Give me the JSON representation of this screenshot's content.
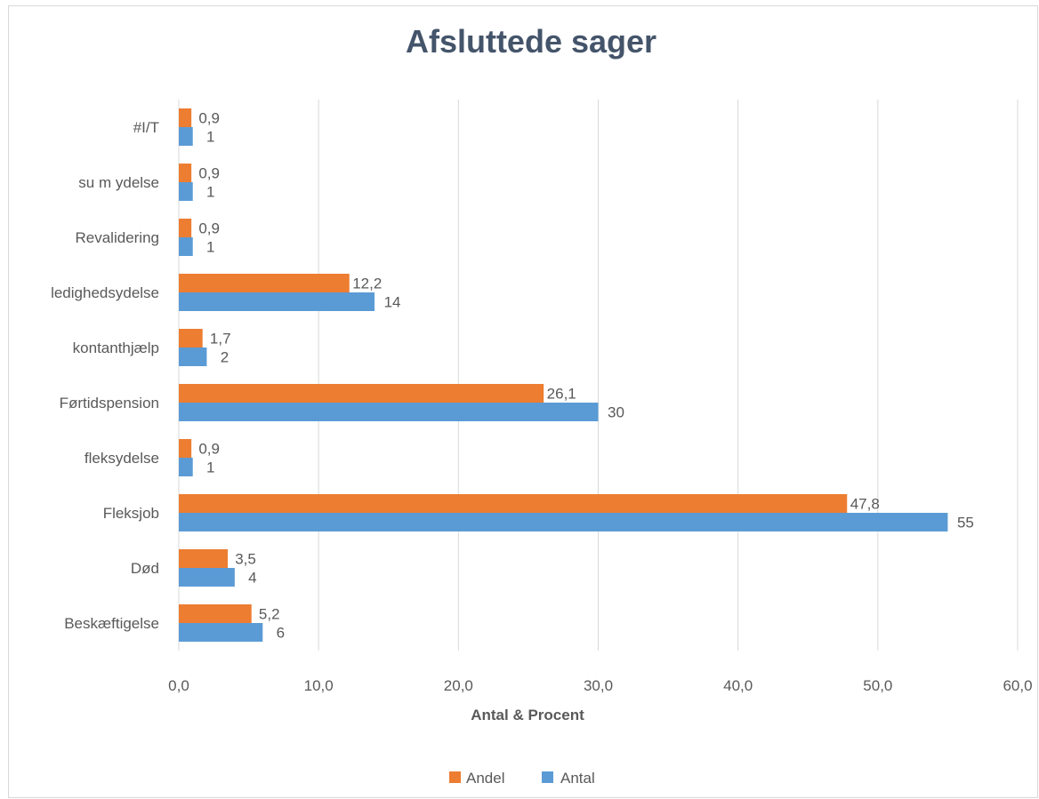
{
  "chart_data": {
    "type": "bar",
    "orientation": "horizontal",
    "title": "Afsluttede sager",
    "xlabel": "Antal & Procent",
    "ylabel": "",
    "xlim": [
      0,
      60
    ],
    "x_ticks": [
      "0,0",
      "10,0",
      "20,0",
      "30,0",
      "40,0",
      "50,0",
      "60,0"
    ],
    "x_tick_values": [
      0,
      10,
      20,
      30,
      40,
      50,
      60
    ],
    "grid": true,
    "legend_position": "bottom",
    "categories": [
      "#I/T",
      "su m ydelse",
      "Revalidering",
      "ledighedsydelse",
      "kontanthjælp",
      "Førtidspension",
      "fleksydelse",
      "Fleksjob",
      "Død",
      "Beskæftigelse"
    ],
    "series": [
      {
        "name": "Andel",
        "color": "#ed7d31",
        "values": [
          0.9,
          0.9,
          0.9,
          12.2,
          1.7,
          26.1,
          0.9,
          47.8,
          3.5,
          5.2
        ],
        "labels": [
          "0,9",
          "0,9",
          "0,9",
          "12,2",
          "1,7",
          "26,1",
          "0,9",
          "47,8",
          "3,5",
          "5,2"
        ]
      },
      {
        "name": "Antal",
        "color": "#5b9bd5",
        "values": [
          1,
          1,
          1,
          14,
          2,
          30,
          1,
          55,
          4,
          6
        ],
        "labels": [
          "1",
          "1",
          "1",
          "14",
          "2",
          "30",
          "1",
          "55",
          "4",
          "6"
        ]
      }
    ]
  }
}
